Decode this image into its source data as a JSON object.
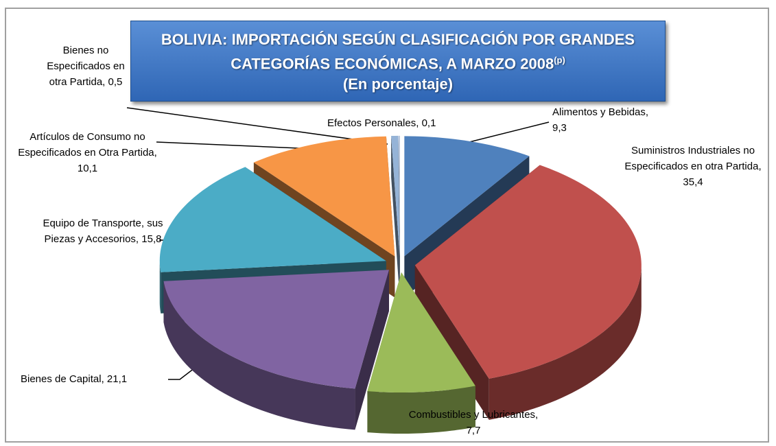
{
  "chart_data": {
    "type": "pie3d",
    "title": "BOLIVIA: IMPORTACIÓN SEGÚN CLASIFICACIÓN POR GRANDES CATEGORÍAS ECONÓMICAS, A MARZO 2008",
    "title_superscript": "(p)",
    "subtitle": "(En porcentaje)",
    "label_separator": ", ",
    "categories": [
      "Alimentos y Bebidas",
      "Suministros Industriales no Especificados en otra Partida",
      "Combustibles y Lubricantes",
      "Bienes de Capital",
      "Equipo de Transporte, sus Piezas y Accesorios",
      "Artículos de Consumo no Especificados en Otra Partida",
      "Bienes no Especificados en otra Partida",
      "Efectos Personales"
    ],
    "values": [
      9.3,
      35.4,
      7.7,
      21.1,
      15.8,
      10.1,
      0.5,
      0.1
    ],
    "value_labels": [
      "9,3",
      "35,4",
      "7,7",
      "21,1",
      "15,8",
      "10,1",
      "0,5",
      "0,1"
    ],
    "colors": [
      "#4f81bd",
      "#c0504d",
      "#9bbb59",
      "#8064a2",
      "#4bacc6",
      "#f79646",
      "#95b3d7",
      "#b7c5dc"
    ]
  }
}
